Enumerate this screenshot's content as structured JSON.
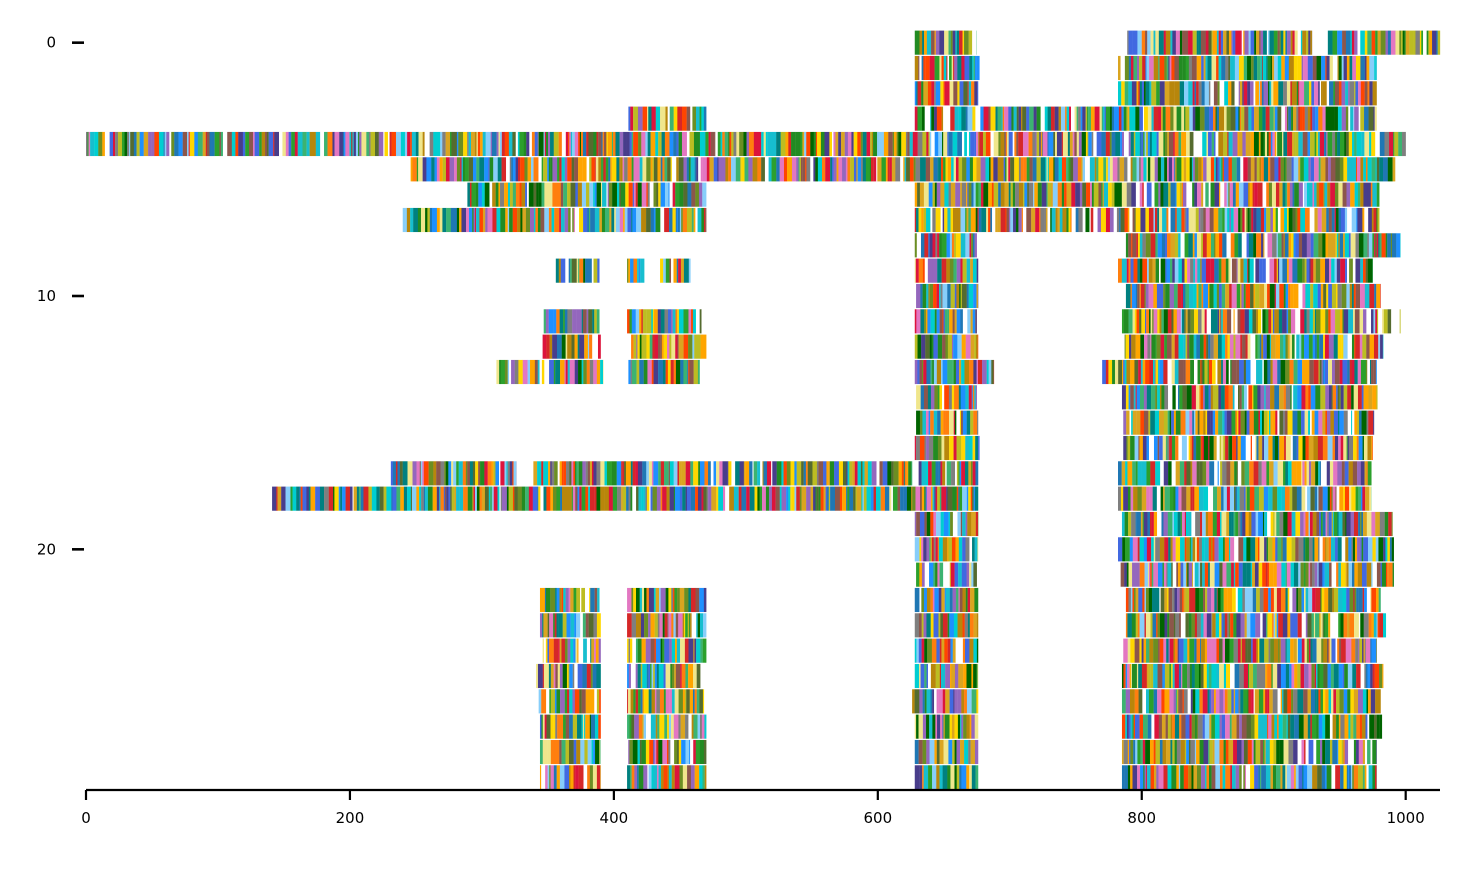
{
  "chart_data": {
    "type": "heatmap",
    "title": "",
    "xlabel": "",
    "ylabel": "",
    "xlim": [
      0,
      1026
    ],
    "ylim": [
      29.5,
      -0.5
    ],
    "grid": false,
    "legend": "none",
    "x_ticks": [
      0,
      200,
      400,
      600,
      800,
      1000
    ],
    "y_ticks": [
      0,
      10,
      20
    ],
    "x_tick_labels": [
      "0",
      "200",
      "400",
      "600",
      "800",
      "1000"
    ],
    "y_tick_labels": [
      "0",
      "10",
      "20"
    ],
    "palette": [
      "#1f77b4",
      "#ff7f0e",
      "#2ca02c",
      "#d62728",
      "#9467bd",
      "#8c564b",
      "#e377c2",
      "#7f7f7f",
      "#bcbd22",
      "#17becf",
      "#008080",
      "#ffd700",
      "#00ced1",
      "#ffa500",
      "#006400",
      "#228b22",
      "#4169e1",
      "#b8860b",
      "#556b2f",
      "#ff4500",
      "#1e90ff",
      "#6b8e23",
      "#daa520",
      "#3cb371",
      "#dc143c",
      "#483d8b",
      "#f0e68c",
      "#87cefa"
    ],
    "rows": [
      {
        "row": 0,
        "segments": [
          [
            628,
            675
          ],
          [
            789,
            929
          ],
          [
            941,
            1026
          ]
        ]
      },
      {
        "row": 1,
        "segments": [
          [
            628,
            677
          ],
          [
            782,
            978
          ]
        ]
      },
      {
        "row": 2,
        "segments": [
          [
            628,
            676
          ],
          [
            782,
            978
          ]
        ]
      },
      {
        "row": 3,
        "segments": [
          [
            411,
            470
          ],
          [
            628,
            978
          ]
        ]
      },
      {
        "row": 4,
        "segments": [
          [
            0,
            1000
          ]
        ]
      },
      {
        "row": 5,
        "segments": [
          [
            246,
            992
          ]
        ]
      },
      {
        "row": 6,
        "segments": [
          [
            289,
            470
          ],
          [
            628,
            980
          ]
        ]
      },
      {
        "row": 7,
        "segments": [
          [
            240,
            470
          ],
          [
            628,
            980
          ]
        ]
      },
      {
        "row": 8,
        "segments": [
          [
            628,
            675
          ],
          [
            788,
            996
          ]
        ]
      },
      {
        "row": 9,
        "segments": [
          [
            356,
            389
          ],
          [
            410,
            423
          ],
          [
            435,
            458
          ],
          [
            628,
            676
          ],
          [
            782,
            975
          ]
        ]
      },
      {
        "row": 10,
        "segments": [
          [
            629,
            676
          ],
          [
            788,
            981
          ]
        ]
      },
      {
        "row": 11,
        "segments": [
          [
            344,
            389
          ],
          [
            410,
            469
          ],
          [
            628,
            675
          ],
          [
            785,
            996
          ]
        ]
      },
      {
        "row": 12,
        "segments": [
          [
            346,
            390
          ],
          [
            410,
            470
          ],
          [
            628,
            676
          ],
          [
            787,
            983
          ]
        ]
      },
      {
        "row": 13,
        "segments": [
          [
            311,
            392
          ],
          [
            411,
            465
          ],
          [
            628,
            688
          ],
          [
            770,
            978
          ]
        ]
      },
      {
        "row": 14,
        "segments": [
          [
            629,
            675
          ],
          [
            785,
            981
          ]
        ]
      },
      {
        "row": 15,
        "segments": [
          [
            629,
            676
          ],
          [
            786,
            976
          ]
        ]
      },
      {
        "row": 16,
        "segments": [
          [
            628,
            677
          ],
          [
            786,
            975
          ]
        ]
      },
      {
        "row": 17,
        "segments": [
          [
            231,
            326
          ],
          [
            339,
            626
          ],
          [
            628,
            676
          ],
          [
            782,
            974
          ]
        ]
      },
      {
        "row": 18,
        "segments": [
          [
            141,
            676
          ],
          [
            782,
            974
          ]
        ]
      },
      {
        "row": 19,
        "segments": [
          [
            628,
            676
          ],
          [
            785,
            990
          ]
        ]
      },
      {
        "row": 20,
        "segments": [
          [
            628,
            676
          ],
          [
            782,
            991
          ]
        ]
      },
      {
        "row": 21,
        "segments": [
          [
            629,
            675
          ],
          [
            784,
            991
          ]
        ]
      },
      {
        "row": 22,
        "segments": [
          [
            344,
            390
          ],
          [
            410,
            470
          ],
          [
            628,
            676
          ],
          [
            788,
            981
          ]
        ]
      },
      {
        "row": 23,
        "segments": [
          [
            344,
            390
          ],
          [
            410,
            470
          ],
          [
            628,
            676
          ],
          [
            788,
            985
          ]
        ]
      },
      {
        "row": 24,
        "segments": [
          [
            346,
            390
          ],
          [
            410,
            470
          ],
          [
            628,
            676
          ],
          [
            786,
            978
          ]
        ]
      },
      {
        "row": 25,
        "segments": [
          [
            341,
            390
          ],
          [
            410,
            470
          ],
          [
            628,
            676
          ],
          [
            785,
            983
          ]
        ]
      },
      {
        "row": 26,
        "segments": [
          [
            343,
            390
          ],
          [
            410,
            470
          ],
          [
            626,
            676
          ],
          [
            785,
            981
          ]
        ]
      },
      {
        "row": 27,
        "segments": [
          [
            344,
            390
          ],
          [
            410,
            470
          ],
          [
            628,
            676
          ],
          [
            785,
            982
          ]
        ]
      },
      {
        "row": 28,
        "segments": [
          [
            344,
            390
          ],
          [
            410,
            470
          ],
          [
            628,
            676
          ],
          [
            785,
            978
          ]
        ]
      },
      {
        "row": 29,
        "segments": [
          [
            344,
            390
          ],
          [
            410,
            470
          ],
          [
            628,
            676
          ],
          [
            785,
            978
          ]
        ]
      }
    ]
  }
}
